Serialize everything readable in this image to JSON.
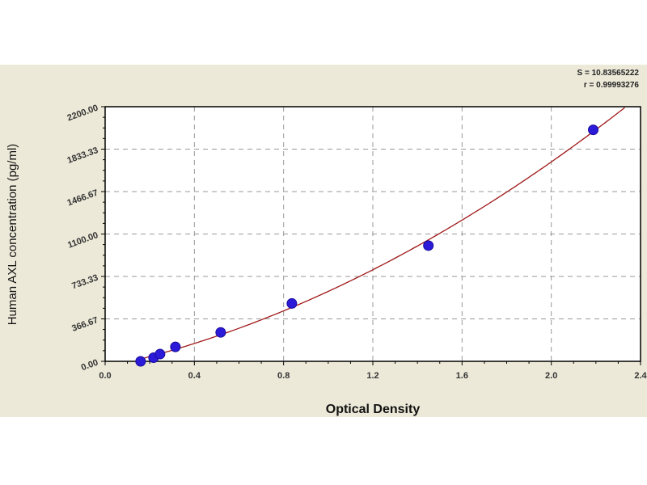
{
  "chart_data": {
    "type": "scatter",
    "xlabel": "Optical Density",
    "ylabel": "Human AXL concentration (pg/ml)",
    "xlim": [
      0,
      2.4
    ],
    "ylim": [
      0,
      2200
    ],
    "x_ticks": [
      "0.0",
      "0.4",
      "0.8",
      "1.2",
      "1.6",
      "2.0",
      "2.4"
    ],
    "y_ticks": [
      "0.00",
      "366.67",
      "733.33",
      "1100.00",
      "1466.67",
      "1833.33",
      "2200.00"
    ],
    "grid": true,
    "points": [
      {
        "x": 0.159,
        "y": 0
      },
      {
        "x": 0.217,
        "y": 31.25
      },
      {
        "x": 0.246,
        "y": 62.5
      },
      {
        "x": 0.315,
        "y": 125
      },
      {
        "x": 0.518,
        "y": 250
      },
      {
        "x": 0.837,
        "y": 500
      },
      {
        "x": 1.449,
        "y": 1000
      },
      {
        "x": 2.188,
        "y": 2000
      }
    ],
    "fit_stats": [
      "S = 10.83565222",
      "r = 0.99993276"
    ],
    "colors": {
      "points": "#2b1ad8",
      "curve": "#a01818",
      "grid": "#999999",
      "background": "#ece9d8"
    }
  }
}
